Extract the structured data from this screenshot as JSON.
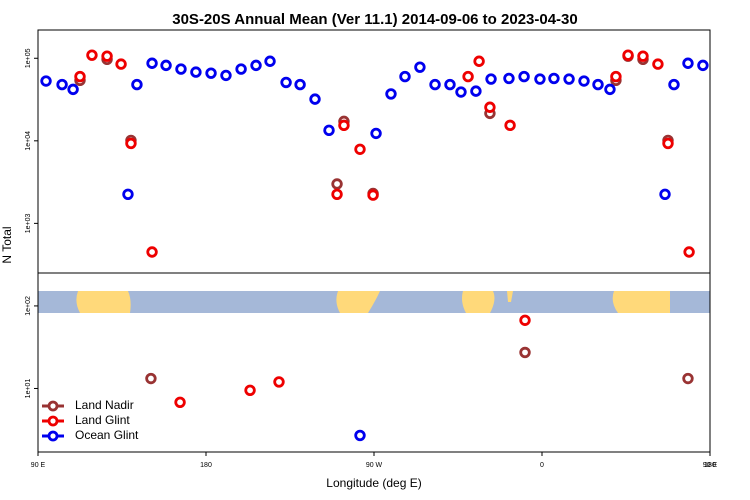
{
  "chart_data": {
    "type": "scatter",
    "title": "30S-20S Annual Mean (Ver 11.1)   2014-09-06 to 2023-04-30",
    "x_label": "Longitude (deg E)",
    "y_label": "N Total",
    "yscale": "log",
    "xlim": [
      90,
      450
    ],
    "ylim": [
      1.7,
      220000
    ],
    "xticks": [
      {
        "value": 90,
        "label": "90 E"
      },
      {
        "value": 180,
        "label": "180"
      },
      {
        "value": 270,
        "label": "90 W"
      },
      {
        "value": 360,
        "label": "0"
      },
      {
        "value": 450,
        "label": "90 E"
      },
      {
        "value": 540,
        "label": "180"
      }
    ],
    "yticks": [
      {
        "value": 10,
        "label": "1e+01"
      },
      {
        "value": 100,
        "label": "1e+02"
      },
      {
        "value": 1000,
        "label": "1e+03"
      },
      {
        "value": 10000,
        "label": "1e+04"
      },
      {
        "value": 100000,
        "label": "1e+05"
      }
    ],
    "legend": "lower left",
    "series": [
      {
        "name": "Land Nadir",
        "color": "#993333",
        "x": [
          112.5,
          127.0,
          139.8,
          150.5,
          250.2,
          253.9,
          269.5,
          332.1,
          350.9,
          399.6,
          406.1,
          414.1,
          427.5,
          438.2
        ],
        "values": [
          54000,
          97000,
          10100,
          13.2,
          3000,
          17200,
          2300,
          21500,
          27.3,
          54000,
          106000,
          97000,
          10100,
          13.2
        ]
      },
      {
        "name": "Land Glint",
        "color": "#ee0000",
        "x": [
          112.5,
          118.9,
          127.0,
          134.5,
          139.8,
          151.1,
          166.1,
          203.6,
          219.1,
          250.2,
          253.9,
          262.5,
          269.5,
          320.4,
          326.3,
          332.1,
          342.9,
          350.9,
          399.6,
          406.1,
          414.1,
          422.1,
          427.5,
          438.8
        ],
        "values": [
          60000,
          109000,
          106000,
          85000,
          9300,
          450,
          6.8,
          9.5,
          12,
          2250,
          15400,
          7900,
          2200,
          60000,
          92000,
          25500,
          15400,
          67,
          60000,
          109000,
          106000,
          85000,
          9300,
          450
        ]
      },
      {
        "name": "Ocean Glint",
        "color": "#0000ee",
        "x": [
          94.3,
          102.9,
          108.8,
          138.2,
          143.0,
          151.1,
          158.6,
          166.6,
          174.6,
          182.7,
          190.7,
          198.8,
          206.8,
          214.3,
          222.9,
          230.4,
          238.4,
          245.9,
          262.5,
          271.1,
          279.1,
          286.6,
          294.6,
          302.7,
          310.7,
          316.6,
          324.6,
          332.7,
          342.3,
          350.4,
          358.9,
          366.4,
          374.5,
          382.5,
          390.0,
          396.4,
          425.9,
          430.7,
          438.2,
          446.2
        ],
        "values": [
          53000,
          48000,
          42000,
          2250,
          48000,
          87000,
          82000,
          74000,
          68000,
          66000,
          62000,
          74000,
          82000,
          92000,
          51000,
          48000,
          32000,
          13400,
          2.7,
          12300,
          37000,
          60000,
          78000,
          48000,
          48000,
          39000,
          40000,
          56000,
          57000,
          60000,
          56000,
          57000,
          56000,
          53000,
          48000,
          42000,
          2250,
          48000,
          87000,
          82000
        ]
      }
    ]
  }
}
